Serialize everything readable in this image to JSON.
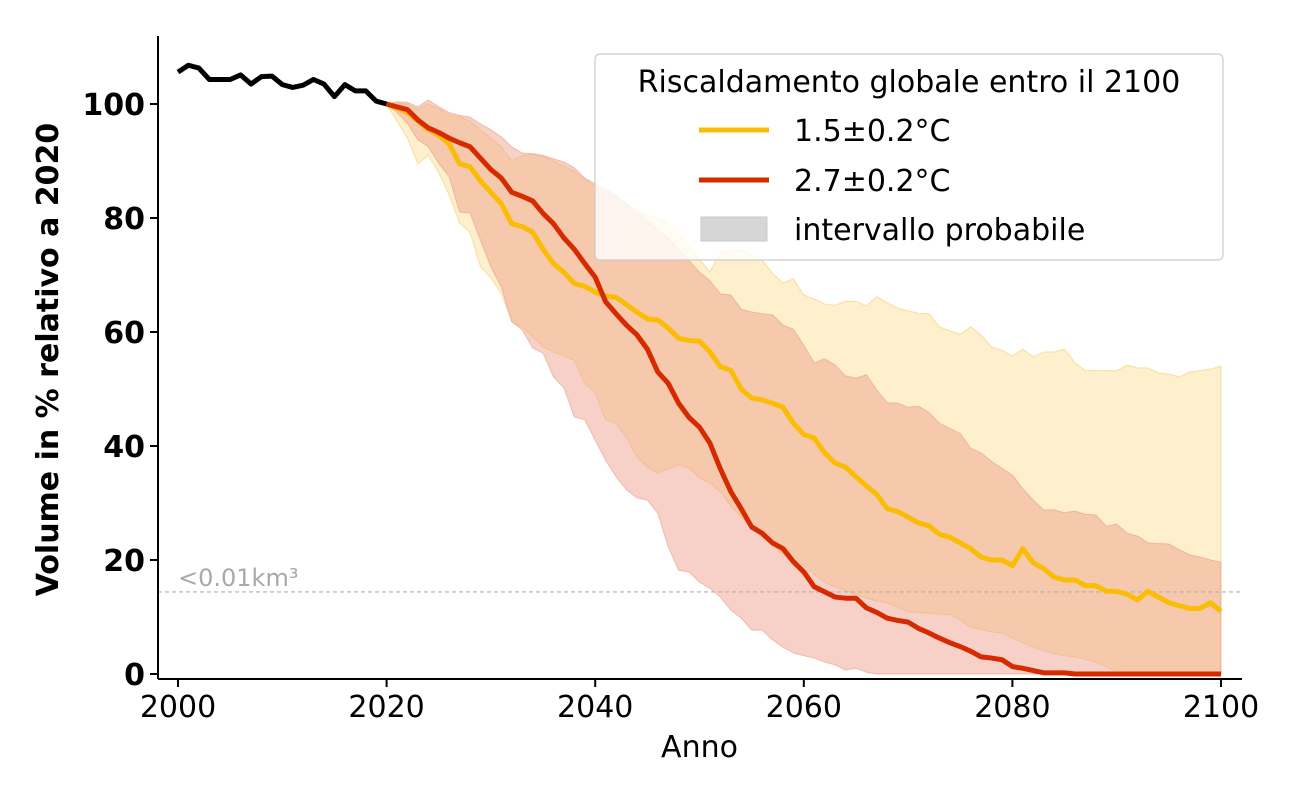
{
  "chart_data": {
    "type": "line",
    "title": "",
    "xlabel": "Anno",
    "ylabel": "Volume in % relativo a 2020",
    "xlim": [
      1998,
      2102
    ],
    "ylim": [
      -1,
      112
    ],
    "xticks": [
      2000,
      2020,
      2040,
      2060,
      2080,
      2100
    ],
    "yticks": [
      0,
      20,
      40,
      60,
      80,
      100
    ],
    "grid": false,
    "legend": {
      "title": "Riscaldamento globale entro il 2100",
      "placement": "top-right",
      "entries": [
        {
          "label": "1.5±0.2°C",
          "kind": "line",
          "color": "#fbbc05"
        },
        {
          "label": "2.7±0.2°C",
          "kind": "line",
          "color": "#d62a00"
        },
        {
          "label": "intervallo probabile",
          "kind": "patch",
          "color": "#d6d6d6"
        }
      ]
    },
    "reference_line": {
      "y": 14.4,
      "label": "<0.01km³",
      "color": "#b0b0b0",
      "style": "dashed"
    },
    "historical": {
      "name": "observed",
      "color": "#000000",
      "x": [
        2000,
        2001,
        2002,
        2003,
        2004,
        2005,
        2006,
        2007,
        2008,
        2009,
        2010,
        2011,
        2012,
        2013,
        2014,
        2015,
        2016,
        2017,
        2018,
        2019,
        2020
      ],
      "values": [
        105.6,
        106.8,
        106.3,
        104.3,
        104.3,
        104.3,
        105.1,
        103.5,
        104.8,
        104.9,
        103.4,
        102.9,
        103.3,
        104.3,
        103.5,
        101.3,
        103.4,
        102.3,
        102.3,
        100.5,
        100
      ]
    },
    "x": [
      2020,
      2021,
      2022,
      2023,
      2024,
      2025,
      2026,
      2027,
      2028,
      2029,
      2030,
      2031,
      2032,
      2033,
      2034,
      2035,
      2036,
      2037,
      2038,
      2039,
      2040,
      2041,
      2042,
      2043,
      2044,
      2045,
      2046,
      2047,
      2048,
      2049,
      2050,
      2051,
      2052,
      2053,
      2054,
      2055,
      2056,
      2057,
      2058,
      2059,
      2060,
      2061,
      2062,
      2063,
      2064,
      2065,
      2066,
      2067,
      2068,
      2069,
      2070,
      2071,
      2072,
      2073,
      2074,
      2075,
      2076,
      2077,
      2078,
      2079,
      2080,
      2081,
      2082,
      2083,
      2084,
      2085,
      2086,
      2087,
      2088,
      2089,
      2090,
      2091,
      2092,
      2093,
      2094,
      2095,
      2096,
      2097,
      2098,
      2099,
      2100
    ],
    "series": [
      {
        "name": "1.5±0.2°C",
        "color": "#fbbc05",
        "band_color": "#fdd87a",
        "values": [
          100,
          99.3,
          98.5,
          97,
          95.5,
          94.5,
          93,
          89.5,
          89,
          86.5,
          84.5,
          82.5,
          79,
          78.5,
          77.5,
          74.5,
          72,
          70.5,
          68.5,
          68,
          67,
          66.3,
          66.1,
          64.8,
          63.5,
          62.3,
          62.1,
          60.7,
          58.9,
          58.5,
          58.4,
          56.5,
          53.9,
          53.3,
          50,
          48.4,
          48.1,
          47.5,
          46.8,
          44,
          42,
          41.4,
          38.8,
          37,
          36.3,
          34.6,
          33,
          31.5,
          29,
          28.5,
          27.5,
          26.5,
          26,
          24.5,
          24,
          23,
          22,
          20.5,
          20,
          20,
          19,
          22,
          19.5,
          18.5,
          17,
          16.5,
          16.5,
          15.5,
          15.5,
          14.5,
          14.5,
          14,
          13,
          14.5,
          13.5,
          12.5,
          12,
          11.5,
          11.5,
          12.5,
          11
        ],
        "upper": [
          100,
          100.2,
          100,
          99,
          100,
          99.2,
          98,
          97.8,
          97,
          95.5,
          94,
          92.5,
          90,
          91,
          91.2,
          90.8,
          90,
          89,
          88.2,
          86.8,
          85.5,
          84.5,
          83.7,
          82.5,
          81.4,
          80.6,
          80,
          79,
          77.4,
          75,
          72.8,
          70.5,
          74,
          74.3,
          74.4,
          73.5,
          72.6,
          70.3,
          68.6,
          69.3,
          66.5,
          65.8,
          64.9,
          64.7,
          65.4,
          65.4,
          64.6,
          66.2,
          65.1,
          64.2,
          63.7,
          63.3,
          63.2,
          60.9,
          60.2,
          59.6,
          60.9,
          59.5,
          57.4,
          56.8,
          55.8,
          57,
          55.6,
          56.5,
          56.5,
          57,
          54.6,
          53.2,
          53.3,
          53.2,
          53.2,
          54.2,
          53.7,
          53.7,
          52.8,
          52.6,
          52.1,
          53,
          53.2,
          53.5,
          54
        ],
        "lower": [
          100,
          97,
          94,
          89.5,
          91,
          88,
          84,
          79.1,
          77.5,
          71.5,
          69.5,
          66.8,
          61.8,
          60.9,
          59.2,
          57.4,
          56.5,
          55.8,
          55,
          51,
          49.3,
          44.6,
          44,
          41.5,
          38.1,
          36.3,
          35.2,
          36,
          36.7,
          36.1,
          34.4,
          33.5,
          32,
          29.5,
          27.5,
          25.8,
          24,
          22.6,
          20.9,
          20,
          19.1,
          17.5,
          16.1,
          15.3,
          14.6,
          14,
          13.3,
          12.8,
          12.5,
          11.7,
          10.9,
          10.8,
          10.7,
          10.5,
          10.4,
          9.5,
          8.2,
          7.8,
          7.4,
          7.2,
          6.3,
          5.5,
          4.7,
          4.1,
          3.6,
          3.2,
          3,
          2.6,
          2.1,
          1.3,
          0.4,
          0,
          0,
          0,
          0,
          0,
          0,
          0,
          0,
          0,
          0
        ]
      },
      {
        "name": "2.7±0.2°C",
        "color": "#d62a00",
        "band_color": "#eea7a0",
        "values": [
          100,
          99.5,
          99,
          97.2,
          95.8,
          95,
          94,
          93.2,
          92.5,
          90.5,
          88.5,
          87,
          84.5,
          83.8,
          83,
          80.8,
          79,
          76.5,
          74.5,
          72,
          69.6,
          65.3,
          63.2,
          61.2,
          59.5,
          57,
          53,
          51,
          47.5,
          45,
          43.3,
          40.5,
          36,
          32,
          29,
          25.8,
          24.7,
          23,
          22,
          19.7,
          17.9,
          15.3,
          14.4,
          13.5,
          13.3,
          13.3,
          11.6,
          10.8,
          9.8,
          9.4,
          9.1,
          8,
          7.2,
          6.3,
          5.5,
          4.8,
          4,
          3,
          2.8,
          2.5,
          1.3,
          1,
          0.6,
          0.2,
          0.2,
          0.2,
          0,
          0,
          0,
          0,
          0,
          0,
          0,
          0,
          0,
          0,
          0,
          0,
          0,
          0,
          0
        ],
        "upper": [
          100,
          100.4,
          100.3,
          99.5,
          100.7,
          99.5,
          98.5,
          98,
          97.7,
          96.5,
          95.5,
          94.2,
          92.5,
          91.4,
          91.3,
          91,
          90.4,
          89.8,
          88.8,
          87,
          86,
          85,
          84,
          82.5,
          81,
          79.5,
          78,
          76.5,
          74.5,
          72.5,
          70.5,
          69,
          66.7,
          66.5,
          64,
          63.5,
          63.2,
          63,
          61.2,
          60.5,
          57.7,
          54.6,
          55.3,
          54.2,
          52.3,
          51.9,
          52.5,
          49.8,
          47.6,
          47.5,
          46.8,
          47,
          45.9,
          44,
          43.1,
          42.2,
          39.6,
          38.8,
          37.3,
          36.1,
          34.9,
          32.5,
          30.5,
          28.8,
          28.8,
          28.3,
          28.6,
          28,
          27.9,
          25.9,
          26.3,
          24.7,
          24.2,
          23,
          22.9,
          22.8,
          21.8,
          20.9,
          20.5,
          20,
          19.6
        ],
        "lower": [
          100,
          98.5,
          96.6,
          93.7,
          92.5,
          89.6,
          87.2,
          81,
          80.9,
          76.1,
          71.4,
          67.9,
          61.8,
          60.4,
          57.2,
          56.3,
          52.1,
          50.2,
          45.1,
          44.6,
          41,
          37.5,
          34.6,
          32.3,
          30.9,
          30.5,
          28.2,
          22.3,
          18.2,
          17.9,
          16.1,
          15,
          13.5,
          11.2,
          9.8,
          7.7,
          7.7,
          6,
          4.7,
          3.7,
          3.2,
          2.8,
          2.1,
          1.6,
          0.7,
          1,
          0.3,
          0,
          0,
          0,
          0,
          0,
          0,
          0,
          0,
          0,
          0,
          0,
          0,
          0,
          0,
          0,
          0,
          0,
          0,
          0,
          0,
          0,
          0,
          0,
          0,
          0,
          0,
          0,
          0,
          0,
          0,
          0,
          0,
          0,
          0
        ]
      }
    ]
  }
}
